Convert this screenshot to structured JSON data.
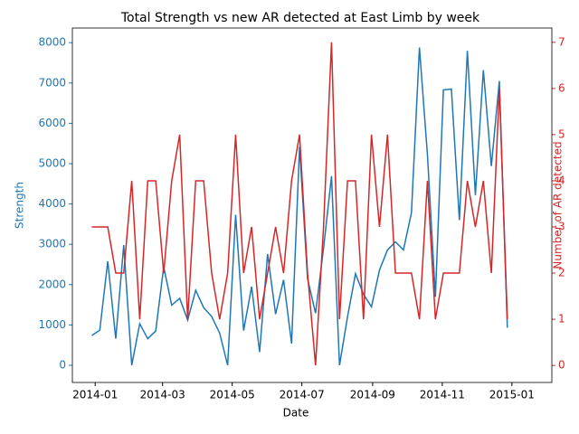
{
  "chart_data": {
    "type": "line",
    "title": "Total Strength vs new AR detected at East Limb by week",
    "xlabel": "Date",
    "ylabel": "Strength",
    "y2label": "Number of AR detected",
    "x": [
      "2013-12-29",
      "2014-01-05",
      "2014-01-12",
      "2014-01-19",
      "2014-01-26",
      "2014-02-02",
      "2014-02-09",
      "2014-02-16",
      "2014-02-23",
      "2014-03-02",
      "2014-03-09",
      "2014-03-16",
      "2014-03-23",
      "2014-03-30",
      "2014-04-06",
      "2014-04-13",
      "2014-04-20",
      "2014-04-27",
      "2014-05-04",
      "2014-05-11",
      "2014-05-18",
      "2014-05-25",
      "2014-06-01",
      "2014-06-08",
      "2014-06-15",
      "2014-06-22",
      "2014-06-29",
      "2014-07-06",
      "2014-07-13",
      "2014-07-20",
      "2014-07-27",
      "2014-08-03",
      "2014-08-10",
      "2014-08-17",
      "2014-08-24",
      "2014-08-31",
      "2014-09-07",
      "2014-09-14",
      "2014-09-21",
      "2014-09-28",
      "2014-10-05",
      "2014-10-12",
      "2014-10-19",
      "2014-10-26",
      "2014-11-02",
      "2014-11-09",
      "2014-11-16",
      "2014-11-23",
      "2014-11-30",
      "2014-12-07",
      "2014-12-14",
      "2014-12-21",
      "2014-12-28"
    ],
    "series": [
      {
        "color": "#1f77b4",
        "axis": "y",
        "values": [
          740,
          870,
          2580,
          660,
          2980,
          0,
          1030,
          660,
          850,
          2440,
          1490,
          1660,
          1120,
          1860,
          1430,
          1210,
          800,
          0,
          3730,
          860,
          1950,
          330,
          2760,
          1270,
          2120,
          540,
          5420,
          2150,
          1290,
          2900,
          4690,
          0,
          1200,
          2270,
          1760,
          1450,
          2360,
          2860,
          3060,
          2860,
          3780,
          7880,
          5230,
          1700,
          6830,
          6850,
          3600,
          7800,
          4220,
          7320,
          4940,
          7050,
          930
        ]
      },
      {
        "color": "#d62728",
        "axis": "y2",
        "values": [
          3,
          3,
          3,
          2,
          2,
          4,
          1,
          4,
          4,
          2,
          4,
          5,
          1,
          4,
          4,
          2,
          1,
          2,
          5,
          2,
          3,
          1,
          2,
          3,
          2,
          4,
          5,
          2,
          0,
          3,
          7,
          1,
          4,
          4,
          1,
          5,
          3,
          5,
          2,
          2,
          2,
          1,
          4,
          1,
          2,
          2,
          2,
          4,
          3,
          4,
          2,
          6,
          1
        ]
      }
    ],
    "xlim": [
      "2013-12-12",
      "2015-02-05"
    ],
    "xticks": [
      {
        "value": "2014-01-01",
        "label": "2014-01"
      },
      {
        "value": "2014-03-01",
        "label": "2014-03"
      },
      {
        "value": "2014-05-01",
        "label": "2014-05"
      },
      {
        "value": "2014-07-01",
        "label": "2014-07"
      },
      {
        "value": "2014-09-01",
        "label": "2014-09"
      },
      {
        "value": "2014-11-01",
        "label": "2014-11"
      },
      {
        "value": "2015-01-01",
        "label": "2015-01"
      }
    ],
    "ylim": [
      -426,
      8363
    ],
    "yticks": [
      0,
      1000,
      2000,
      3000,
      4000,
      5000,
      6000,
      7000,
      8000
    ],
    "y2lim": [
      -0.37,
      7.31
    ],
    "y2ticks": [
      0,
      1,
      2,
      3,
      4,
      5,
      6,
      7
    ]
  }
}
